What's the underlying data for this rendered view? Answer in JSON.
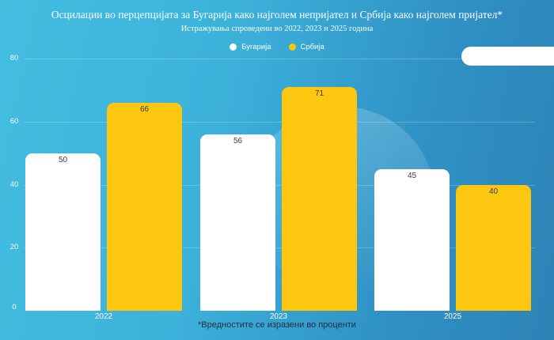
{
  "chart_data": {
    "type": "bar",
    "title": "Осцилации во перцепцијата за Бугарија како најголем непријател и Србија како најголем пријател*",
    "subtitle": "Истражувања спроведени во 2022, 2023 и 2025 година",
    "footnote": "*Вредностите се изразени во проценти",
    "categories": [
      "2022",
      "2023",
      "2025"
    ],
    "series": [
      {
        "name": "Бугарија",
        "color": "#ffffff",
        "values": [
          50,
          56,
          45
        ]
      },
      {
        "name": "Србија",
        "color": "#fcc611",
        "values": [
          66,
          71,
          40
        ]
      }
    ],
    "ylim": [
      0,
      80
    ],
    "yticks": [
      0,
      20,
      40,
      60,
      80
    ],
    "grid": true,
    "legend_position": "top",
    "value_labels": "inside-top"
  },
  "colors": {
    "background_start": "#43bde0",
    "background_end": "#2d83b6",
    "series_bulgaria": "#ffffff",
    "series_serbia": "#fcc611",
    "axis_text": "#ffffff",
    "value_label_text": "#3d3d3d",
    "footnote_text": "#22303f"
  }
}
